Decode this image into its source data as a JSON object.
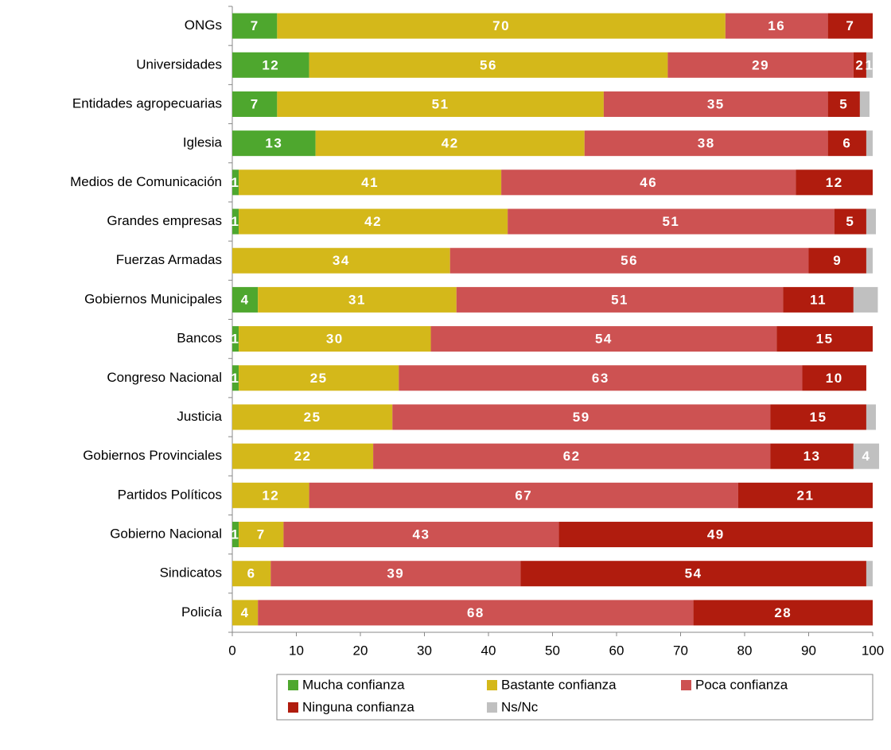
{
  "chart_data": {
    "type": "bar",
    "orientation": "horizontal",
    "stacked": true,
    "categories": [
      "ONGs",
      "Universidades",
      "Entidades agropecuarias",
      "Iglesia",
      "Medios de Comunicación",
      "Grandes empresas",
      "Fuerzas Armadas",
      "Gobiernos Municipales",
      "Bancos",
      "Congreso Nacional",
      "Justicia",
      "Gobiernos Provinciales",
      "Partidos Políticos",
      "Gobierno Nacional",
      "Sindicatos",
      "Policía"
    ],
    "series": [
      {
        "name": "Mucha confianza",
        "color": "#4ea72e",
        "values": [
          7,
          12,
          7,
          13,
          1,
          1,
          null,
          4,
          1,
          1,
          null,
          null,
          null,
          1,
          null,
          null
        ]
      },
      {
        "name": "Bastante confianza",
        "color": "#d4b81a",
        "values": [
          70,
          56,
          51,
          42,
          41,
          42,
          34,
          31,
          30,
          25,
          25,
          22,
          12,
          7,
          6,
          4
        ]
      },
      {
        "name": "Poca confianza",
        "color": "#cd5252",
        "values": [
          16,
          29,
          35,
          38,
          46,
          51,
          56,
          51,
          54,
          63,
          59,
          62,
          67,
          43,
          39,
          68
        ]
      },
      {
        "name": "Ninguna confianza",
        "color": "#b01c0e",
        "values": [
          7,
          2,
          5,
          6,
          12,
          5,
          9,
          11,
          15,
          10,
          15,
          13,
          21,
          49,
          54,
          28
        ]
      },
      {
        "name": "Ns/Nc",
        "color": "#c0c0c0",
        "values": [
          null,
          1,
          1.5,
          1,
          null,
          1.5,
          1,
          3.8,
          null,
          null,
          1.5,
          4,
          null,
          null,
          1,
          null
        ],
        "value_labels": [
          null,
          "1",
          null,
          null,
          null,
          null,
          null,
          null,
          null,
          null,
          null,
          "4",
          null,
          null,
          null,
          null
        ]
      }
    ],
    "xlim": [
      0,
      100
    ],
    "xticks": [
      0,
      10,
      20,
      30,
      40,
      50,
      60,
      70,
      80,
      90,
      100
    ],
    "legend": "bottom"
  }
}
